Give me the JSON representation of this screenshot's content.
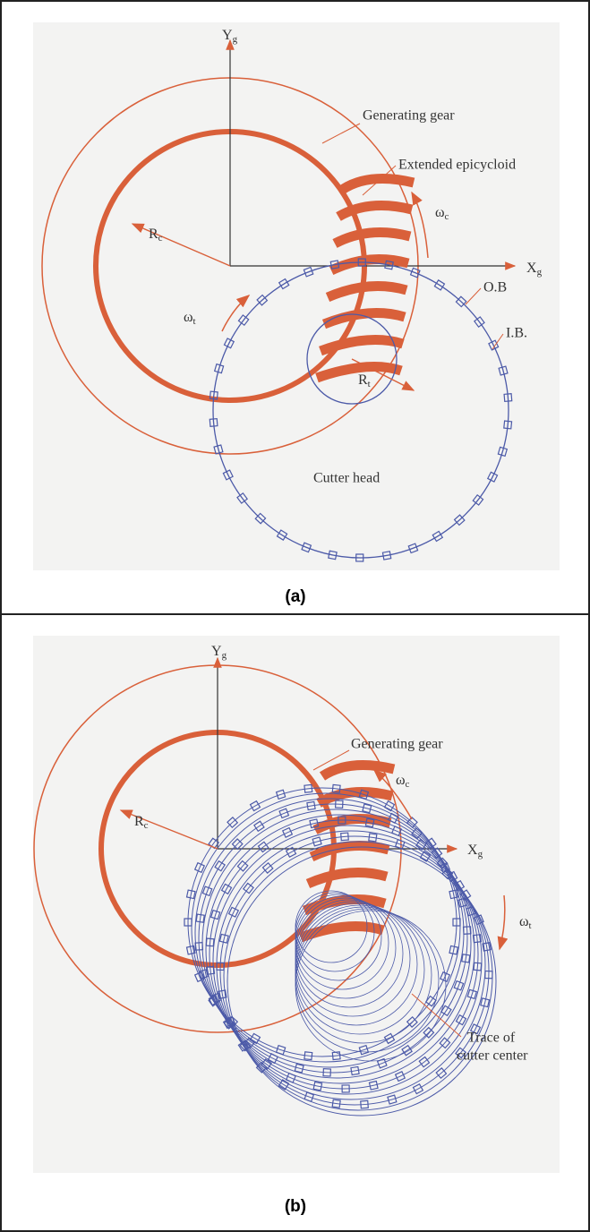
{
  "panels": [
    {
      "caption": "(a)",
      "labels": {
        "y_axis": {
          "text": "Y",
          "sub": "g"
        },
        "x_axis": {
          "text": "X",
          "sub": "g"
        },
        "generating_gear": "Generating gear",
        "extended_epicycloid": "Extended epicycloid",
        "rc": {
          "text": "R",
          "sub": "c"
        },
        "omega_c": {
          "text": "ω",
          "sub": "c"
        },
        "omega_t": {
          "text": "ω",
          "sub": "t"
        },
        "ob": "O.B",
        "ib": "I.B.",
        "rt": {
          "text": "R",
          "sub": "t"
        },
        "cutter_head": "Cutter head"
      }
    },
    {
      "caption": "(b)",
      "labels": {
        "y_axis": {
          "text": "Y",
          "sub": "g"
        },
        "generating_gear": "Generating gear",
        "omega_c": {
          "text": "ω",
          "sub": "c"
        },
        "rc": {
          "text": "R",
          "sub": "c"
        },
        "x_axis": {
          "text": "X",
          "sub": "g"
        },
        "omega_t": {
          "text": "ω",
          "sub": "t"
        },
        "trace": [
          "Trace of",
          "cutter center"
        ]
      }
    }
  ]
}
